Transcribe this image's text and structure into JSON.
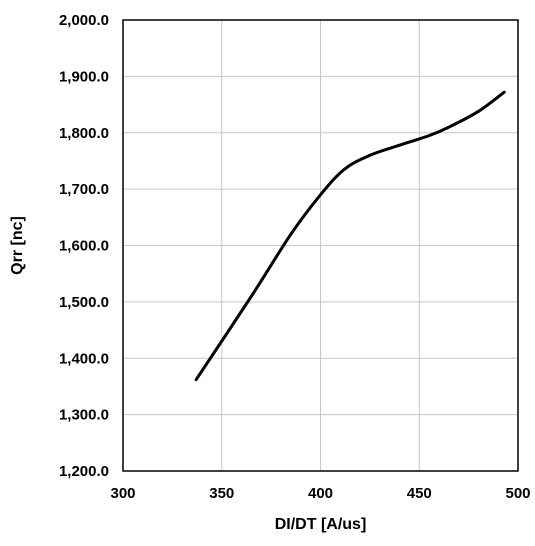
{
  "chart_data": {
    "type": "line",
    "title": "",
    "xlabel": "DI/DT [A/us]",
    "ylabel": "Qrr [nc]",
    "xlim": [
      300,
      500
    ],
    "ylim": [
      1200,
      2000
    ],
    "x_ticks": [
      300,
      350,
      400,
      450,
      500
    ],
    "x_tick_labels": [
      "300",
      "350",
      "400",
      "450",
      "500"
    ],
    "y_ticks": [
      1200,
      1300,
      1400,
      1500,
      1600,
      1700,
      1800,
      1900,
      2000
    ],
    "y_tick_labels": [
      "1,200.0",
      "1,300.0",
      "1,400.0",
      "1,500.0",
      "1,600.0",
      "1,700.0",
      "1,800.0",
      "1,900.0",
      "2,000.0"
    ],
    "grid": true,
    "series": [
      {
        "x": [
          337,
          365,
          385,
          400,
          412,
          425,
          440,
          455,
          465,
          480,
          493
        ],
        "values": [
          1362,
          1510,
          1620,
          1690,
          1735,
          1760,
          1778,
          1795,
          1810,
          1838,
          1872
        ],
        "color": "#000000"
      }
    ]
  }
}
